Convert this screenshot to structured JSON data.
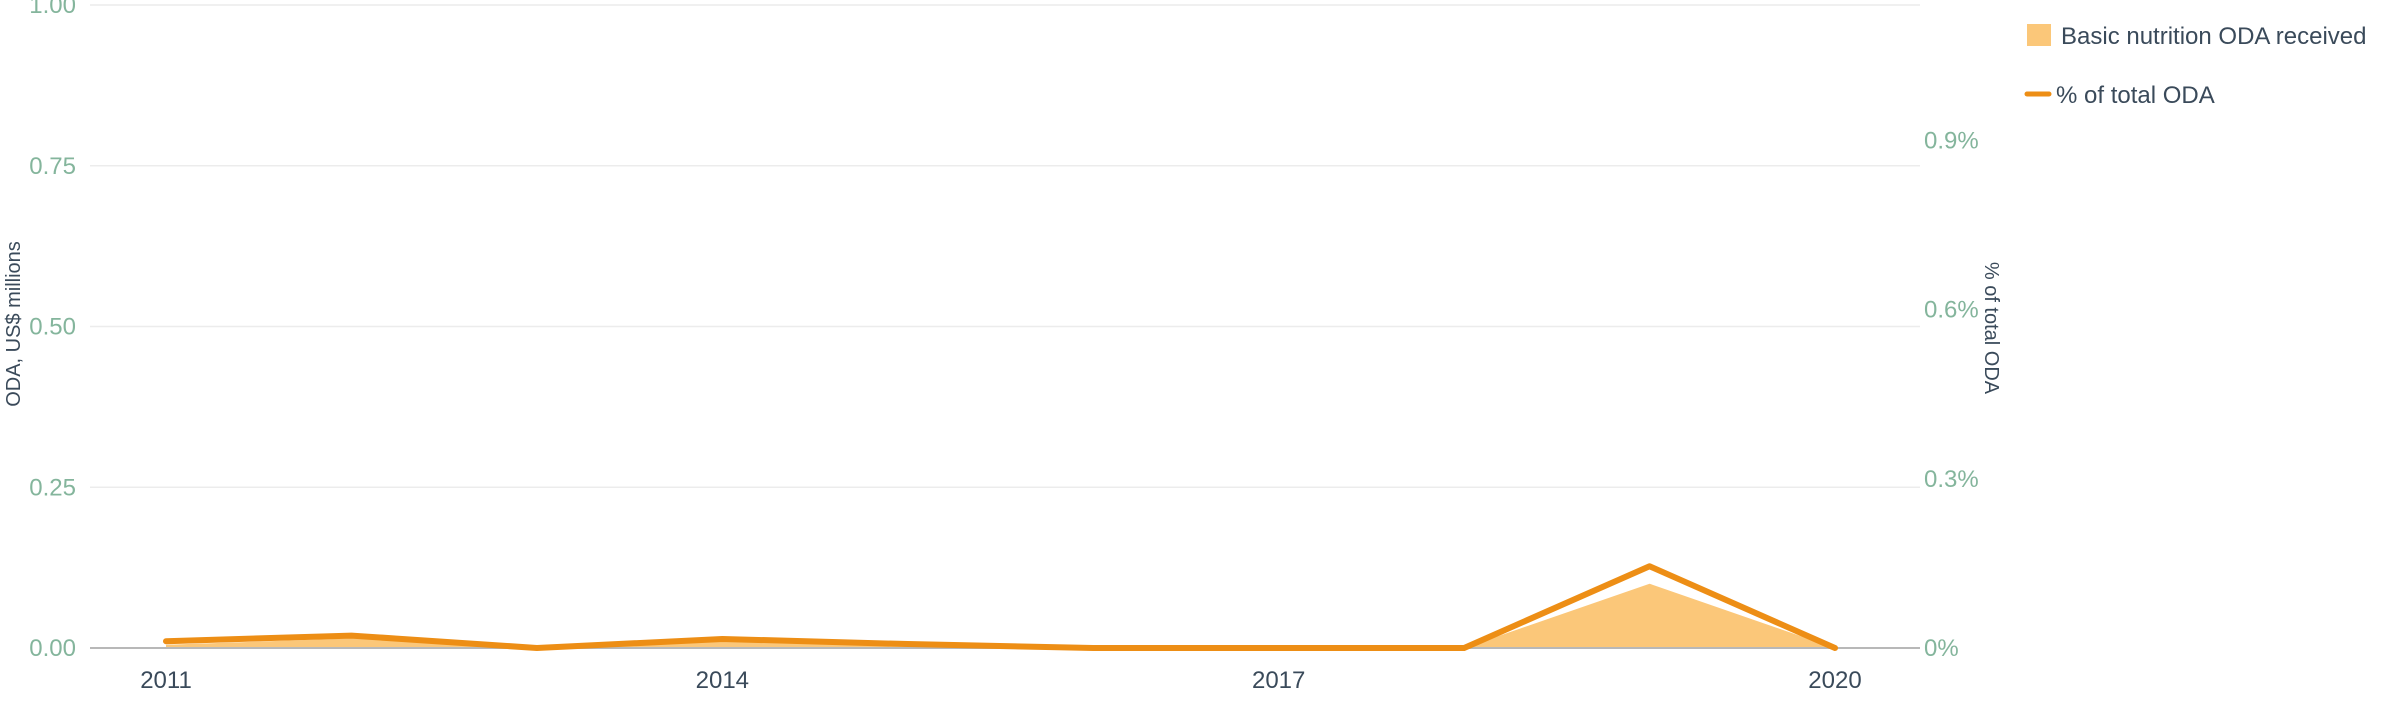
{
  "chart_data": {
    "type": "area",
    "x": [
      2011,
      2012,
      2013,
      2014,
      2015,
      2016,
      2017,
      2018,
      2019,
      2020
    ],
    "x_ticks": [
      "2011",
      "2014",
      "2017",
      "2020"
    ],
    "series": [
      {
        "name": "Basic nutrition ODA received",
        "type": "area",
        "axis": "left",
        "values": [
          0.005,
          0.015,
          0.0,
          0.01,
          0.003,
          0.0,
          0.0,
          0.0,
          0.1,
          0.0
        ]
      },
      {
        "name": "% of total ODA",
        "type": "line",
        "axis": "right",
        "values": [
          0.012,
          0.022,
          0.0,
          0.016,
          0.007,
          0.0,
          0.0,
          0.0,
          0.145,
          0.0
        ]
      }
    ],
    "ylabel": "ODA, US$ millions",
    "ylim": [
      0,
      1.0
    ],
    "y_ticks": [
      "0.00",
      "0.25",
      "0.50",
      "0.75",
      "1.00"
    ],
    "y2label": "% of total ODA",
    "y2lim": [
      0,
      1.14
    ],
    "y2_ticks": [
      "0%",
      "0.3%",
      "0.6%",
      "0.9%"
    ],
    "y2_tick_values": [
      0,
      0.3,
      0.6,
      0.9
    ],
    "grid": true,
    "legend": "top-right"
  },
  "colors": {
    "area_fill": "#fbc779",
    "line": "#ed8e15",
    "tick_left": "#84b59c",
    "tick_right": "#84b59c",
    "tick_x": "#3a4a5a",
    "axis_title": "#3a4a5a",
    "grid": "#ececec",
    "baseline": "#b8b8b8",
    "legend_text": "#3a4a5a"
  }
}
